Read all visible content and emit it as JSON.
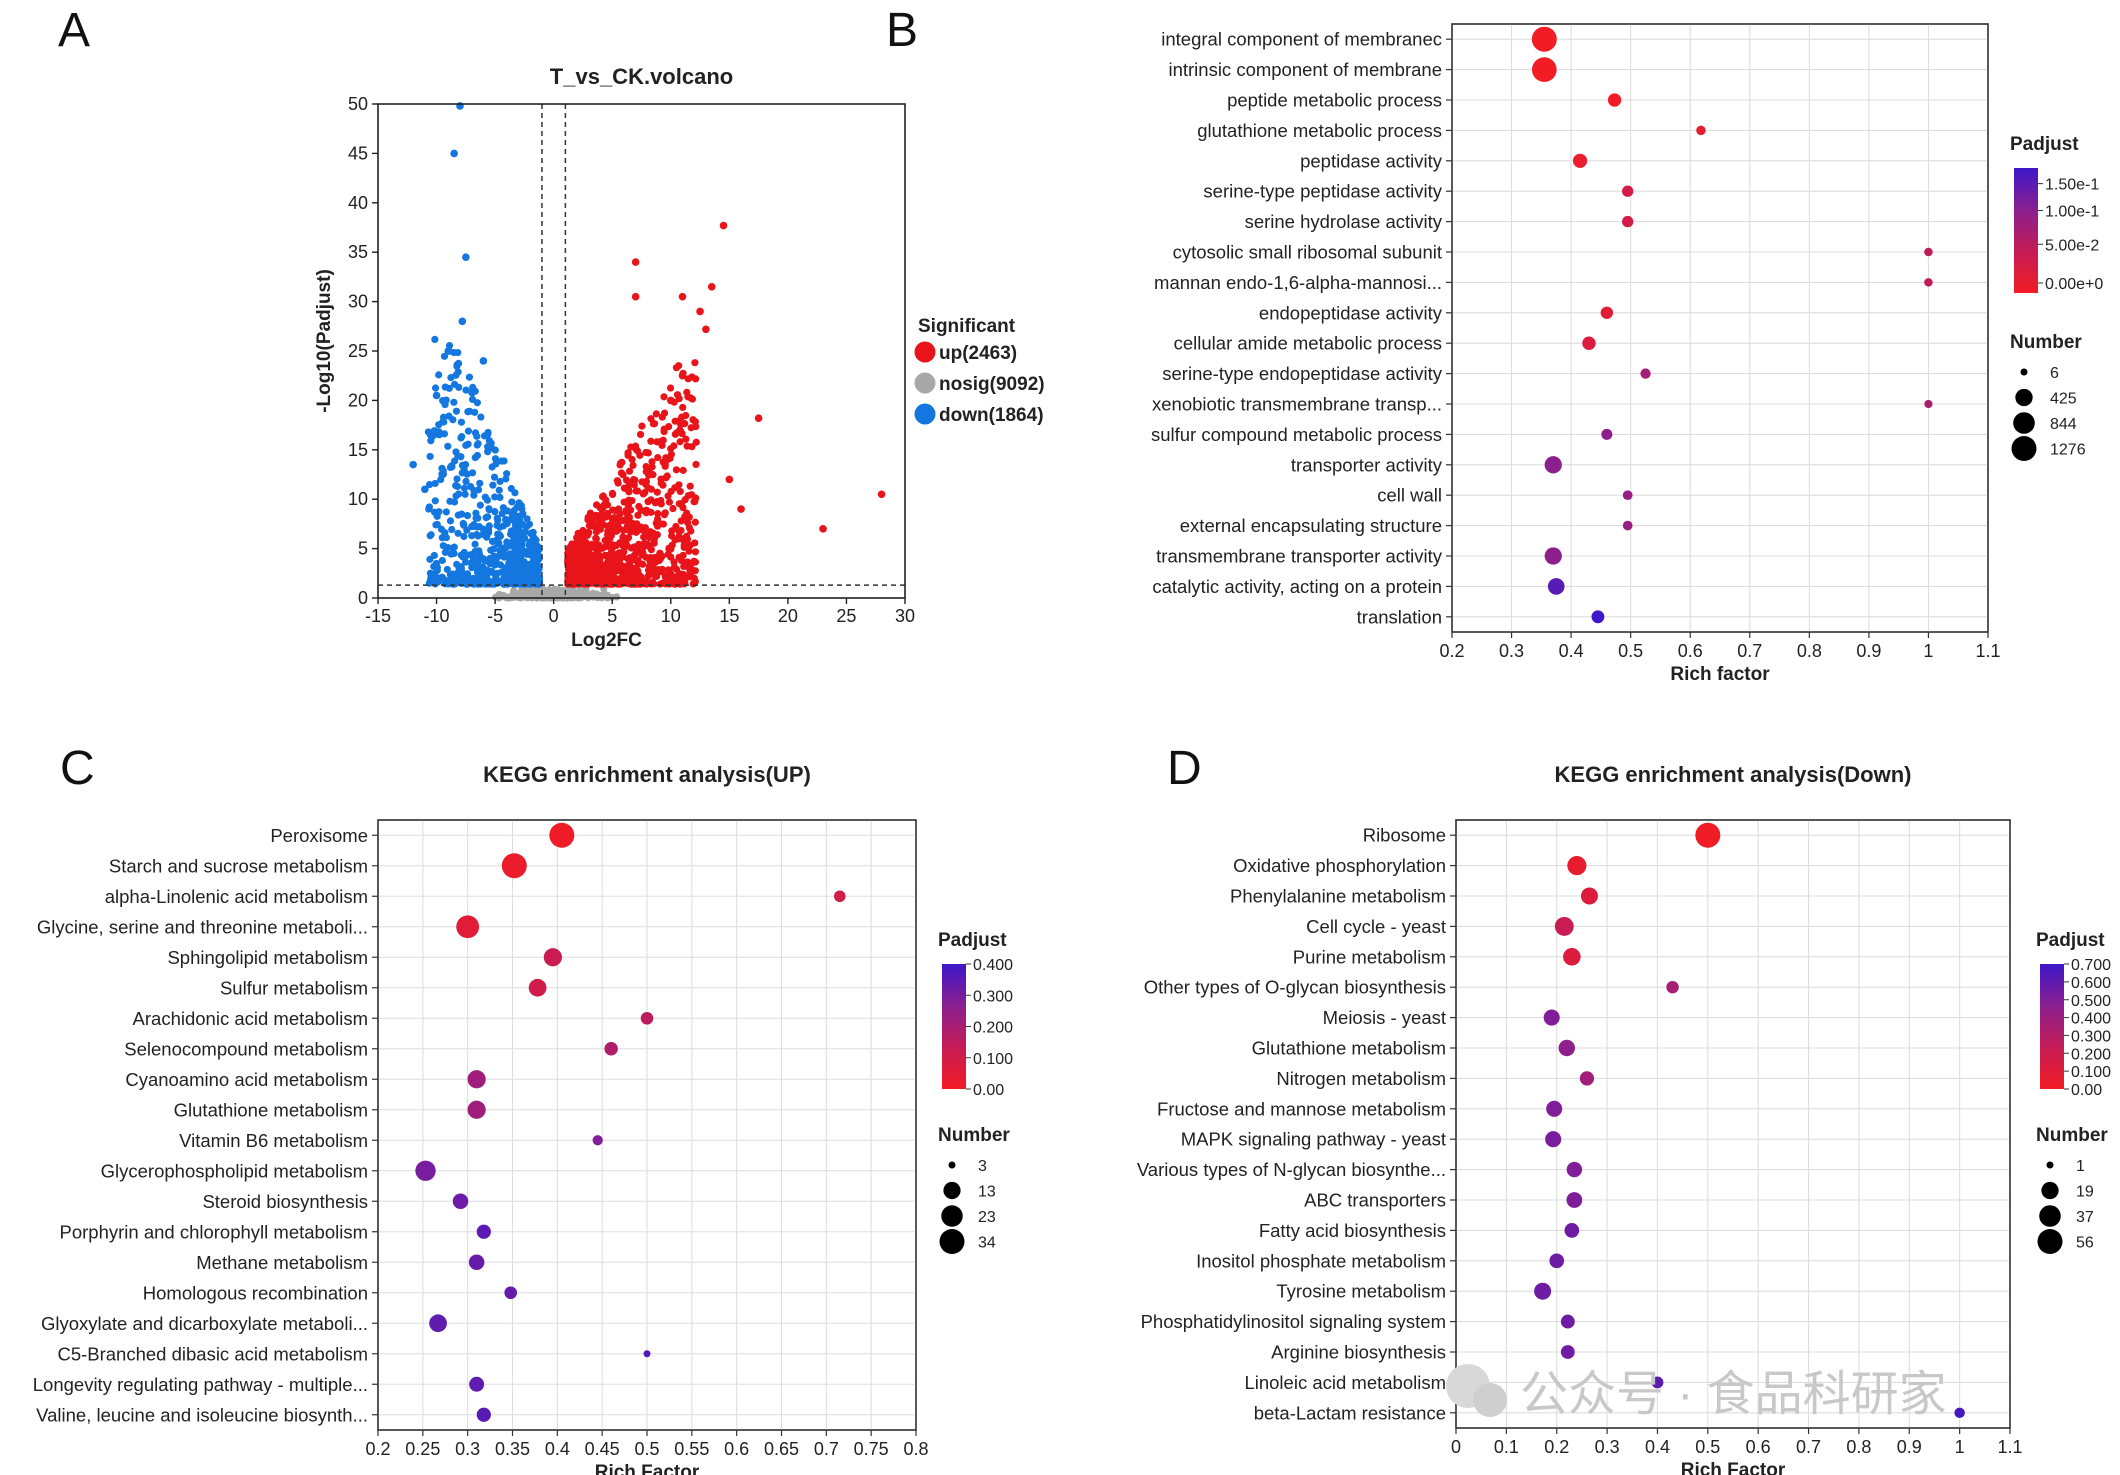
{
  "watermark": "公众号 · 食品科研家",
  "chart_data": [
    {
      "panel": "A",
      "type": "scatter",
      "title": "T_vs_CK.volcano",
      "xlabel": "Log2FC",
      "ylabel": "-Log10(Padjust)",
      "xlim": [
        -15,
        30
      ],
      "ylim": [
        0,
        50
      ],
      "xticks": [
        -15,
        -10,
        -5,
        0,
        5,
        10,
        15,
        20,
        25,
        30
      ],
      "yticks": [
        0,
        5,
        10,
        15,
        20,
        25,
        30,
        35,
        40,
        45,
        50
      ],
      "thresholds": {
        "x": [
          -1,
          1
        ],
        "y": 1.3
      },
      "legend_title": "Significant",
      "legend_position": "right",
      "series": [
        {
          "name": "up(2463)",
          "color": "#e8141a",
          "count": 2463
        },
        {
          "name": "nosig(9092)",
          "color": "#a8a8a8",
          "count": 9092
        },
        {
          "name": "down(1864)",
          "color": "#1477e0",
          "count": 1864
        }
      ],
      "outliers": {
        "up": [
          [
            28,
            10.5
          ],
          [
            23,
            7
          ],
          [
            17.5,
            18.2
          ],
          [
            14.5,
            37.7
          ],
          [
            13,
            27.2
          ],
          [
            12.5,
            29
          ],
          [
            11,
            30.5
          ],
          [
            7,
            34
          ],
          [
            7,
            30.5
          ],
          [
            13.5,
            31.5
          ],
          [
            15,
            12
          ],
          [
            16,
            9
          ],
          [
            10,
            20
          ],
          [
            11,
            22.5
          ]
        ],
        "down": [
          [
            -8,
            49.8
          ],
          [
            -8.5,
            45
          ],
          [
            -7.5,
            34.5
          ],
          [
            -7.8,
            28
          ],
          [
            -12,
            13.5
          ],
          [
            -10.5,
            16.5
          ],
          [
            -10,
            20.5
          ],
          [
            -9,
            25
          ],
          [
            -6,
            24
          ],
          [
            -11,
            11
          ]
        ]
      }
    },
    {
      "panel": "B",
      "type": "scatter",
      "title": "",
      "xlabel": "Rich factor",
      "ylabel": "",
      "xlim": [
        0.2,
        1.1
      ],
      "xticks": [
        0.2,
        0.3,
        0.4,
        0.5,
        0.6,
        0.7,
        0.8,
        0.9,
        1,
        1.1
      ],
      "color_legend": {
        "title": "Padjust",
        "ticks": [
          "1.50e-1",
          "1.00e-1",
          "5.00e-2",
          "0.00e+0"
        ],
        "range": [
          0,
          0.17
        ]
      },
      "size_legend": {
        "title": "Number",
        "values": [
          6,
          425,
          844,
          1276
        ]
      },
      "terms": [
        "integral component of membranec",
        "intrinsic component of membrane",
        "peptide metabolic process",
        "glutathione metabolic process",
        "peptidase activity",
        "serine-type peptidase activity",
        "serine hydrolase activity",
        "cytosolic small ribosomal subunit",
        "mannan endo-1,6-alpha-mannosi...",
        "endopeptidase activity",
        "cellular amide metabolic process",
        "serine-type endopeptidase activity",
        "xenobiotic transmembrane transp...",
        "sulfur compound metabolic process",
        "transporter activity",
        "cell wall",
        "external encapsulating structure",
        "transmembrane transporter activity",
        "catalytic activity, acting on a protein",
        "translation"
      ],
      "rich_factor": [
        0.355,
        0.355,
        0.473,
        0.618,
        0.415,
        0.495,
        0.495,
        1.0,
        1.0,
        0.46,
        0.43,
        0.525,
        1.0,
        0.46,
        0.37,
        0.495,
        0.495,
        0.37,
        0.375,
        0.445
      ],
      "number": [
        1276,
        1230,
        160,
        30,
        210,
        80,
        80,
        15,
        15,
        120,
        170,
        50,
        12,
        70,
        420,
        35,
        35,
        420,
        370,
        140
      ],
      "padjust": [
        0.0,
        0.0,
        0.003,
        0.015,
        0.01,
        0.04,
        0.04,
        0.06,
        0.06,
        0.02,
        0.03,
        0.09,
        0.08,
        0.11,
        0.11,
        0.1,
        0.1,
        0.11,
        0.15,
        0.17
      ]
    },
    {
      "panel": "C",
      "type": "scatter",
      "title": "KEGG enrichment analysis(UP)",
      "xlabel": "Rich Factor",
      "ylabel": "",
      "xlim": [
        0.2,
        0.8
      ],
      "xticks": [
        0.2,
        0.25,
        0.3,
        0.35,
        0.4,
        0.45,
        0.5,
        0.55,
        0.6,
        0.65,
        0.7,
        0.75,
        0.8
      ],
      "color_legend": {
        "title": "Padjust",
        "ticks": [
          "0.400",
          "0.300",
          "0.200",
          "0.100",
          "0.00"
        ],
        "range": [
          0,
          0.4
        ]
      },
      "size_legend": {
        "title": "Number",
        "values": [
          3,
          13,
          23,
          34
        ]
      },
      "terms": [
        "Peroxisome",
        "Starch and sucrose metabolism",
        "alpha-Linolenic acid metabolism",
        "Glycine, serine and threonine metaboli...",
        "Sphingolipid metabolism",
        "Sulfur metabolism",
        "Arachidonic acid metabolism",
        "Selenocompound metabolism",
        "Cyanoamino acid metabolism",
        "Glutathione metabolism",
        "Vitamin B6 metabolism",
        "Glycerophospholipid metabolism",
        "Steroid biosynthesis",
        "Porphyrin and chlorophyll metabolism",
        "Methane metabolism",
        "Homologous recombination",
        "Glyoxylate and dicarboxylate metaboli...",
        "C5-Branched dibasic acid metabolism",
        "Longevity regulating pathway - multiple...",
        "Valine, leucine and isoleucine biosynth..."
      ],
      "rich_factor": [
        0.405,
        0.352,
        0.715,
        0.3,
        0.395,
        0.378,
        0.5,
        0.46,
        0.31,
        0.31,
        0.445,
        0.253,
        0.292,
        0.318,
        0.31,
        0.348,
        0.267,
        0.5,
        0.31,
        0.318
      ],
      "number": [
        34,
        34,
        5,
        27,
        15,
        14,
        6,
        7,
        15,
        15,
        4,
        20,
        10,
        8,
        10,
        6,
        14,
        3,
        9,
        8
      ],
      "padjust": [
        0.01,
        0.02,
        0.1,
        0.05,
        0.12,
        0.1,
        0.15,
        0.18,
        0.22,
        0.22,
        0.28,
        0.3,
        0.32,
        0.35,
        0.33,
        0.33,
        0.34,
        0.36,
        0.34,
        0.35
      ]
    },
    {
      "panel": "D",
      "type": "scatter",
      "title": "KEGG enrichment analysis(Down)",
      "xlabel": "Rich Factor",
      "ylabel": "",
      "xlim": [
        0,
        1.1
      ],
      "xticks": [
        0,
        0.1,
        0.2,
        0.3,
        0.4,
        0.5,
        0.6,
        0.7,
        0.8,
        0.9,
        1,
        1.1
      ],
      "color_legend": {
        "title": "Padjust",
        "ticks": [
          "0.700",
          "0.600",
          "0.500",
          "0.400",
          "0.300",
          "0.200",
          "0.100",
          "0.00"
        ],
        "range": [
          0,
          0.7
        ]
      },
      "size_legend": {
        "title": "Number",
        "values": [
          1,
          19,
          37,
          56
        ]
      },
      "terms": [
        "Ribosome",
        "Oxidative phosphorylation",
        "Phenylalanine metabolism",
        "Cell cycle - yeast",
        "Purine metabolism",
        "Other types of O-glycan biosynthesis",
        "Meiosis - yeast",
        "Glutathione metabolism",
        "Nitrogen metabolism",
        "Fructose and mannose metabolism",
        "MAPK signaling pathway - yeast",
        "Various types of N-glycan biosynthe...",
        "ABC transporters",
        "Fatty acid biosynthesis",
        "Inositol phosphate metabolism",
        "Tyrosine metabolism",
        "Phosphatidylinositol signaling system",
        "Arginine biosynthesis",
        "Linoleic acid metabolism",
        "beta-Lactam resistance"
      ],
      "rich_factor": [
        0.5,
        0.24,
        0.265,
        0.215,
        0.23,
        0.43,
        0.19,
        0.22,
        0.26,
        0.195,
        0.193,
        0.235,
        0.235,
        0.23,
        0.2,
        0.172,
        0.222,
        0.222,
        0.4,
        1.0
      ],
      "number": [
        56,
        26,
        18,
        25,
        20,
        6,
        15,
        16,
        10,
        15,
        15,
        13,
        14,
        11,
        11,
        18,
        9,
        9,
        5,
        3
      ],
      "padjust": [
        0.01,
        0.05,
        0.12,
        0.22,
        0.12,
        0.35,
        0.5,
        0.45,
        0.38,
        0.5,
        0.52,
        0.5,
        0.5,
        0.55,
        0.55,
        0.55,
        0.55,
        0.55,
        0.6,
        0.68
      ]
    }
  ]
}
